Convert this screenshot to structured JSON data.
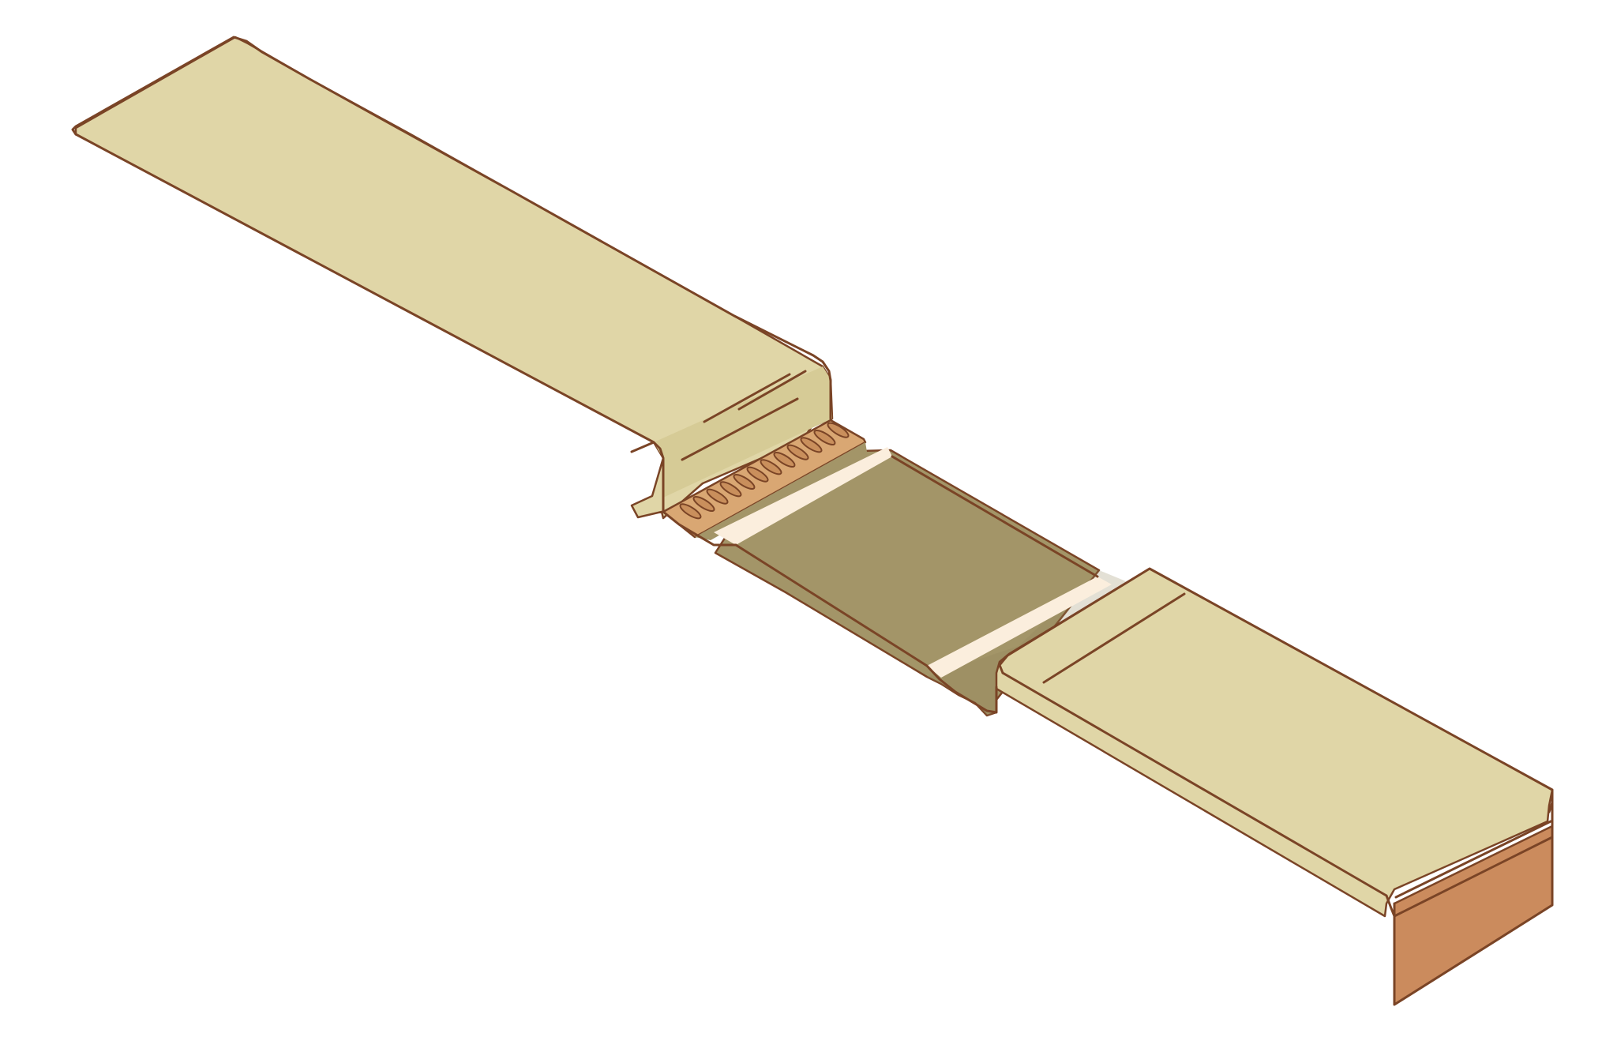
{
  "diagram": {
    "subject": "",
    "colors": {
      "background": "#ffffff",
      "ramp_surface": "#e0d6a7",
      "ramp_fold_shadow": "#d6cb96",
      "center_panel": "#a39568",
      "center_panel_shadow": "#8f8258",
      "stripe": "#fbeedd",
      "grate": "#d9a773",
      "grate_slot": "#c98f5c",
      "end_face": "#cb8b5d",
      "outline": "#7a4426"
    },
    "grate_slot_count": 12,
    "parts": [
      {
        "id": "left-ramp",
        "icon": "ramp-icon"
      },
      {
        "id": "drain-grate",
        "icon": "grate-icon"
      },
      {
        "id": "center-panel",
        "icon": "panel-icon"
      },
      {
        "id": "light-stripes",
        "icon": "stripe-icon"
      },
      {
        "id": "right-ramp",
        "icon": "ramp-icon"
      },
      {
        "id": "end-face",
        "icon": "face-icon"
      }
    ]
  }
}
